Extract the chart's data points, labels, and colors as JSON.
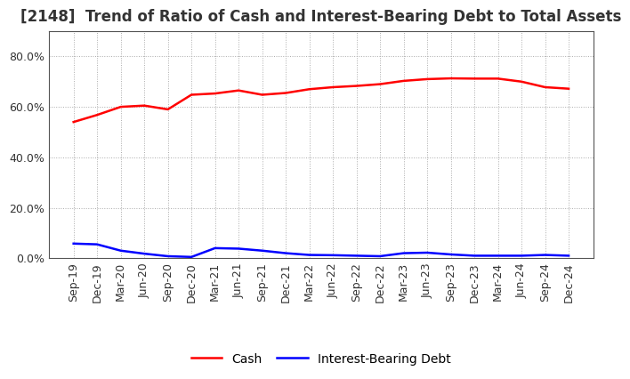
{
  "title": "[2148]  Trend of Ratio of Cash and Interest-Bearing Debt to Total Assets",
  "x_labels": [
    "Sep-19",
    "Dec-19",
    "Mar-20",
    "Jun-20",
    "Sep-20",
    "Dec-20",
    "Mar-21",
    "Jun-21",
    "Sep-21",
    "Dec-21",
    "Mar-22",
    "Jun-22",
    "Sep-22",
    "Dec-22",
    "Mar-23",
    "Jun-23",
    "Sep-23",
    "Dec-23",
    "Mar-24",
    "Jun-24",
    "Sep-24",
    "Dec-24"
  ],
  "cash": [
    0.54,
    0.568,
    0.6,
    0.605,
    0.59,
    0.648,
    0.653,
    0.665,
    0.648,
    0.655,
    0.67,
    0.678,
    0.683,
    0.69,
    0.703,
    0.71,
    0.713,
    0.712,
    0.712,
    0.7,
    0.678,
    0.672
  ],
  "ibd": [
    0.058,
    0.055,
    0.03,
    0.018,
    0.008,
    0.005,
    0.04,
    0.038,
    0.03,
    0.02,
    0.013,
    0.012,
    0.01,
    0.008,
    0.02,
    0.022,
    0.015,
    0.01,
    0.01,
    0.01,
    0.013,
    0.01
  ],
  "cash_color": "#ff0000",
  "ibd_color": "#0000ff",
  "background_color": "#ffffff",
  "grid_color": "#aaaaaa",
  "ylim": [
    0.0,
    0.9
  ],
  "yticks": [
    0.0,
    0.2,
    0.4,
    0.6,
    0.8
  ],
  "legend_labels": [
    "Cash",
    "Interest-Bearing Debt"
  ],
  "title_fontsize": 12,
  "axis_fontsize": 9,
  "legend_fontsize": 10,
  "title_color": "#333333"
}
